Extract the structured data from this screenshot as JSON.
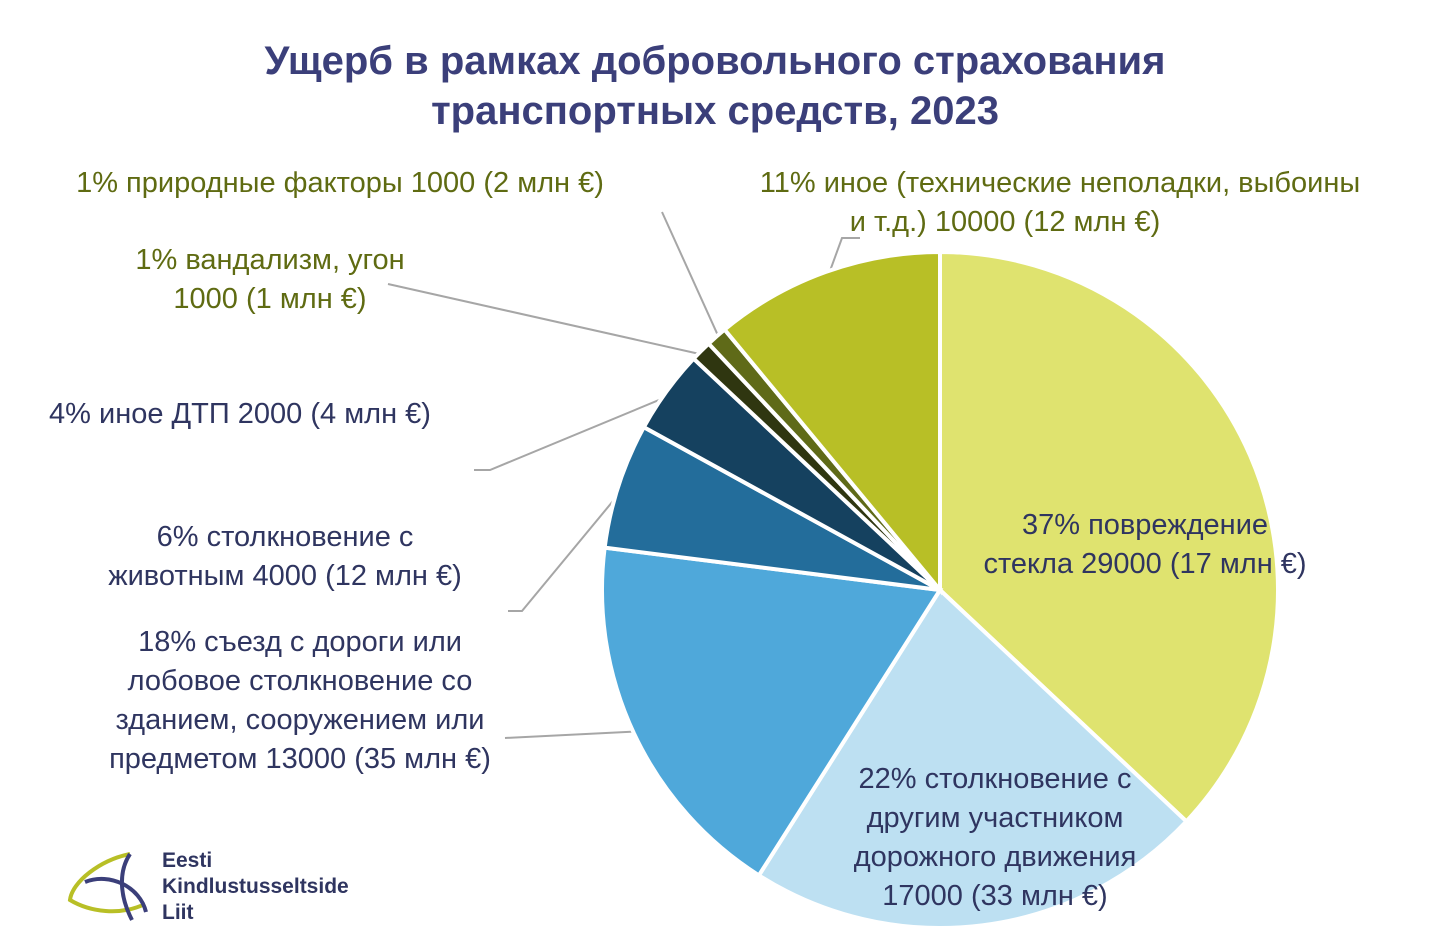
{
  "chart_data": {
    "type": "pie",
    "title": [
      "Ущерб в рамках добровольного  страхования",
      "транспортных  средств, 2023"
    ],
    "slices": [
      {
        "percent": 37,
        "color": "#dfe36f",
        "label": [
          "37% повреждение",
          "стекла 29000 (17 млн €)"
        ]
      },
      {
        "percent": 22,
        "color": "#bde0f2",
        "label": [
          "22% столкновение с",
          "другим  участником",
          "дорожного движения",
          "17000 (33 млн €)"
        ]
      },
      {
        "percent": 18,
        "color": "#4fa8da",
        "label": [
          "18% съезд с дороги или",
          "лобовое столкновение со",
          "зданием, сооружением или",
          "предметом   13000 (35 млн €)"
        ]
      },
      {
        "percent": 6,
        "color": "#236d9b",
        "label": [
          "6% столкновение с",
          "животным   4000 (12 млн €)"
        ]
      },
      {
        "percent": 4,
        "color": "#15415f",
        "label": [
          "4% иное ДТП 2000 (4 млн €)"
        ]
      },
      {
        "percent": 1,
        "color": "#2f3610",
        "label": [
          "1% вандализм,  угон",
          "1000 (1 млн €)"
        ]
      },
      {
        "percent": 1,
        "color": "#5f6a18",
        "label": [
          "1% природные  факторы 1000 (2 млн €)"
        ]
      },
      {
        "percent": 11,
        "color": "#b8bf26",
        "label": [
          "11% иное (технические неполадки,  выбоины",
          "и т.д.) 10000 (12 млн €)"
        ]
      }
    ]
  },
  "logo": {
    "lines": [
      "Eesti",
      "Kindlustusseltside",
      "Liit"
    ]
  }
}
